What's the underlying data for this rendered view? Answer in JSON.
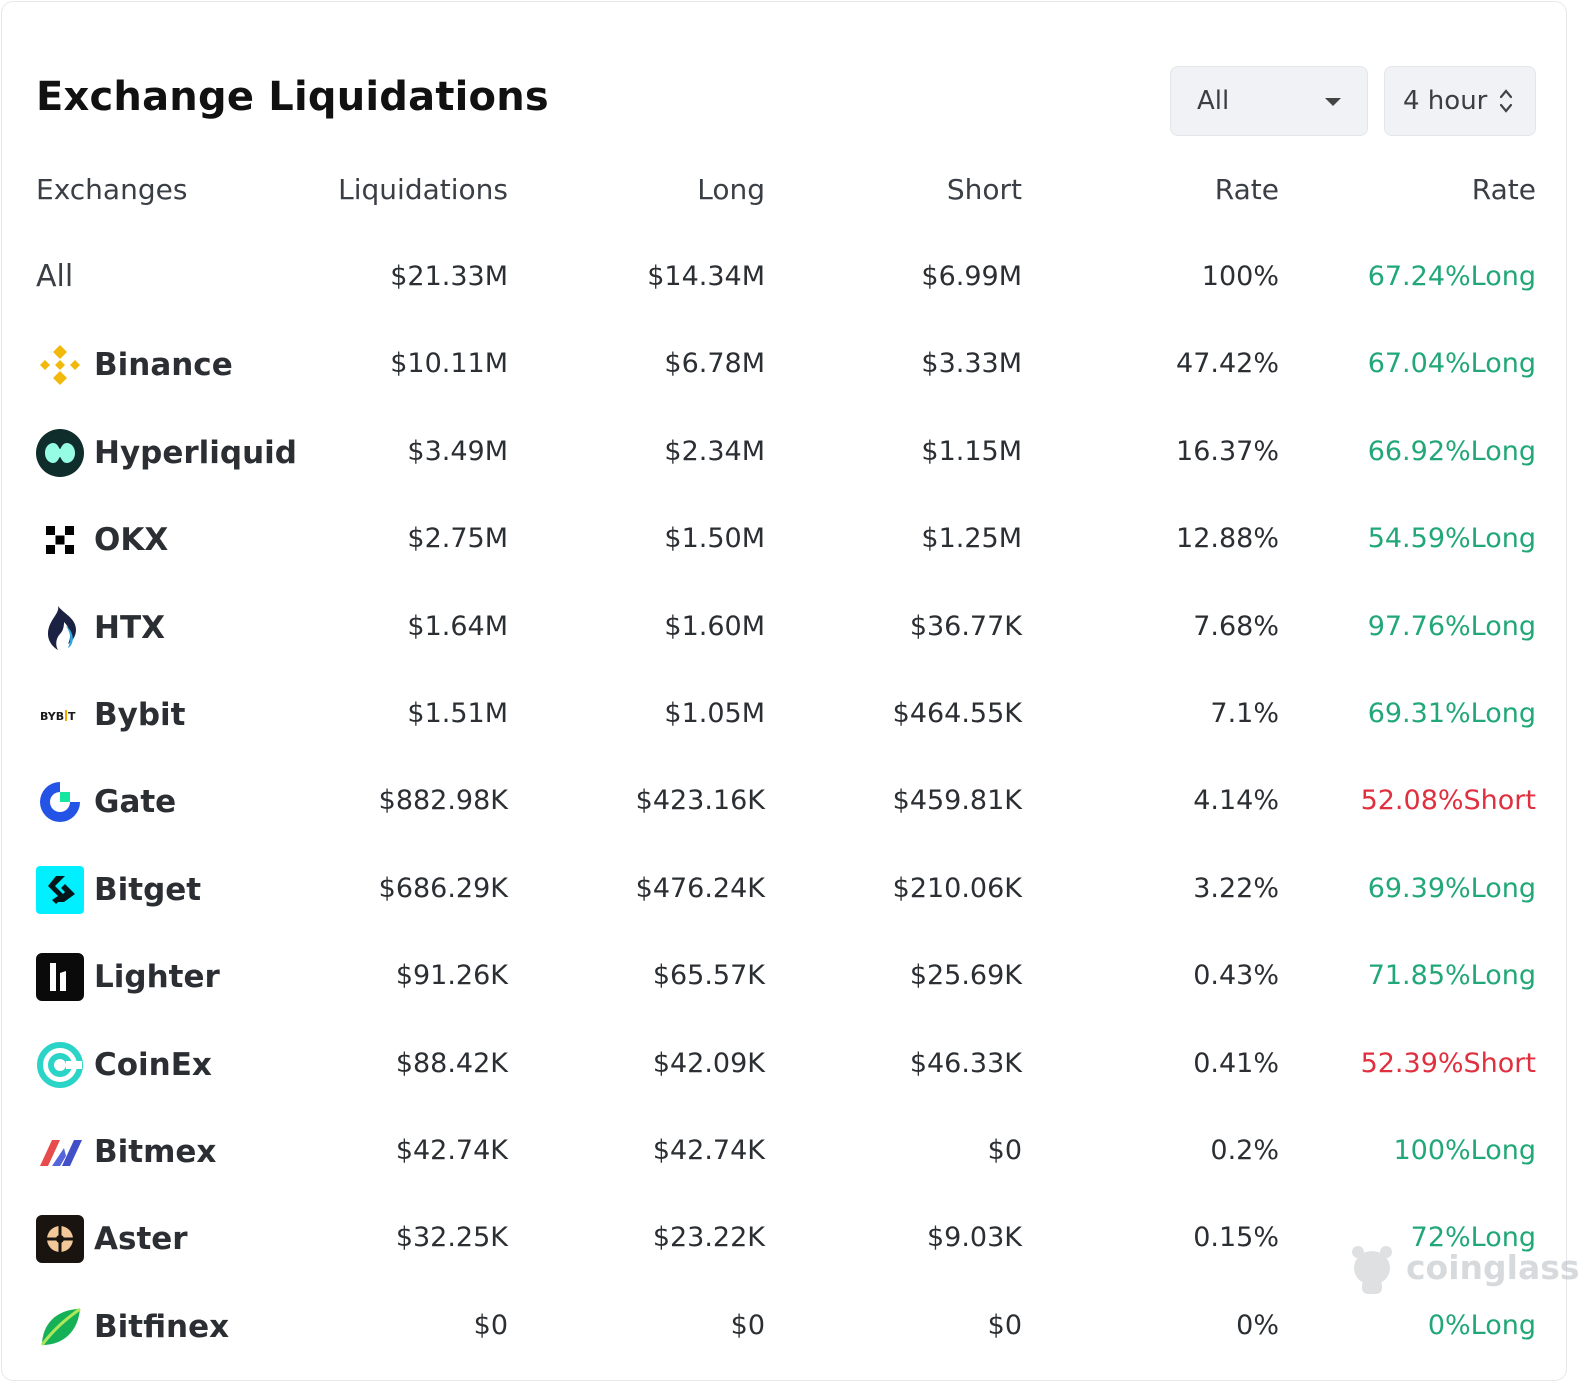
{
  "title": "Exchange Liquidations",
  "filters": {
    "exchange": "All",
    "timeframe": "4 hour"
  },
  "columns": [
    "Exchanges",
    "Liquidations",
    "Long",
    "Short",
    "Rate",
    "Rate"
  ],
  "rows": [
    {
      "exchange": "All",
      "liquidations": "$21.33M",
      "long": "$14.34M",
      "short": "$6.99M",
      "rate": "100%",
      "ls_rate": "67.24%Long"
    },
    {
      "exchange": "Binance",
      "liquidations": "$10.11M",
      "long": "$6.78M",
      "short": "$3.33M",
      "rate": "47.42%",
      "ls_rate": "67.04%Long"
    },
    {
      "exchange": "Hyperliquid",
      "liquidations": "$3.49M",
      "long": "$2.34M",
      "short": "$1.15M",
      "rate": "16.37%",
      "ls_rate": "66.92%Long"
    },
    {
      "exchange": "OKX",
      "liquidations": "$2.75M",
      "long": "$1.50M",
      "short": "$1.25M",
      "rate": "12.88%",
      "ls_rate": "54.59%Long"
    },
    {
      "exchange": "HTX",
      "liquidations": "$1.64M",
      "long": "$1.60M",
      "short": "$36.77K",
      "rate": "7.68%",
      "ls_rate": "97.76%Long"
    },
    {
      "exchange": "Bybit",
      "liquidations": "$1.51M",
      "long": "$1.05M",
      "short": "$464.55K",
      "rate": "7.1%",
      "ls_rate": "69.31%Long"
    },
    {
      "exchange": "Gate",
      "liquidations": "$882.98K",
      "long": "$423.16K",
      "short": "$459.81K",
      "rate": "4.14%",
      "ls_rate": "52.08%Short"
    },
    {
      "exchange": "Bitget",
      "liquidations": "$686.29K",
      "long": "$476.24K",
      "short": "$210.06K",
      "rate": "3.22%",
      "ls_rate": "69.39%Long"
    },
    {
      "exchange": "Lighter",
      "liquidations": "$91.26K",
      "long": "$65.57K",
      "short": "$25.69K",
      "rate": "0.43%",
      "ls_rate": "71.85%Long"
    },
    {
      "exchange": "CoinEx",
      "liquidations": "$88.42K",
      "long": "$42.09K",
      "short": "$46.33K",
      "rate": "0.41%",
      "ls_rate": "52.39%Short"
    },
    {
      "exchange": "Bitmex",
      "liquidations": "$42.74K",
      "long": "$42.74K",
      "short": "$0",
      "rate": "0.2%",
      "ls_rate": "100%Long"
    },
    {
      "exchange": "Aster",
      "liquidations": "$32.25K",
      "long": "$23.22K",
      "short": "$9.03K",
      "rate": "0.15%",
      "ls_rate": "72%Long"
    },
    {
      "exchange": "Bitfinex",
      "liquidations": "$0",
      "long": "$0",
      "short": "$0",
      "rate": "0%",
      "ls_rate": "0%Long"
    }
  ],
  "watermark": "coinglass",
  "colors": {
    "long": "#22a878",
    "short": "#e0303f"
  }
}
